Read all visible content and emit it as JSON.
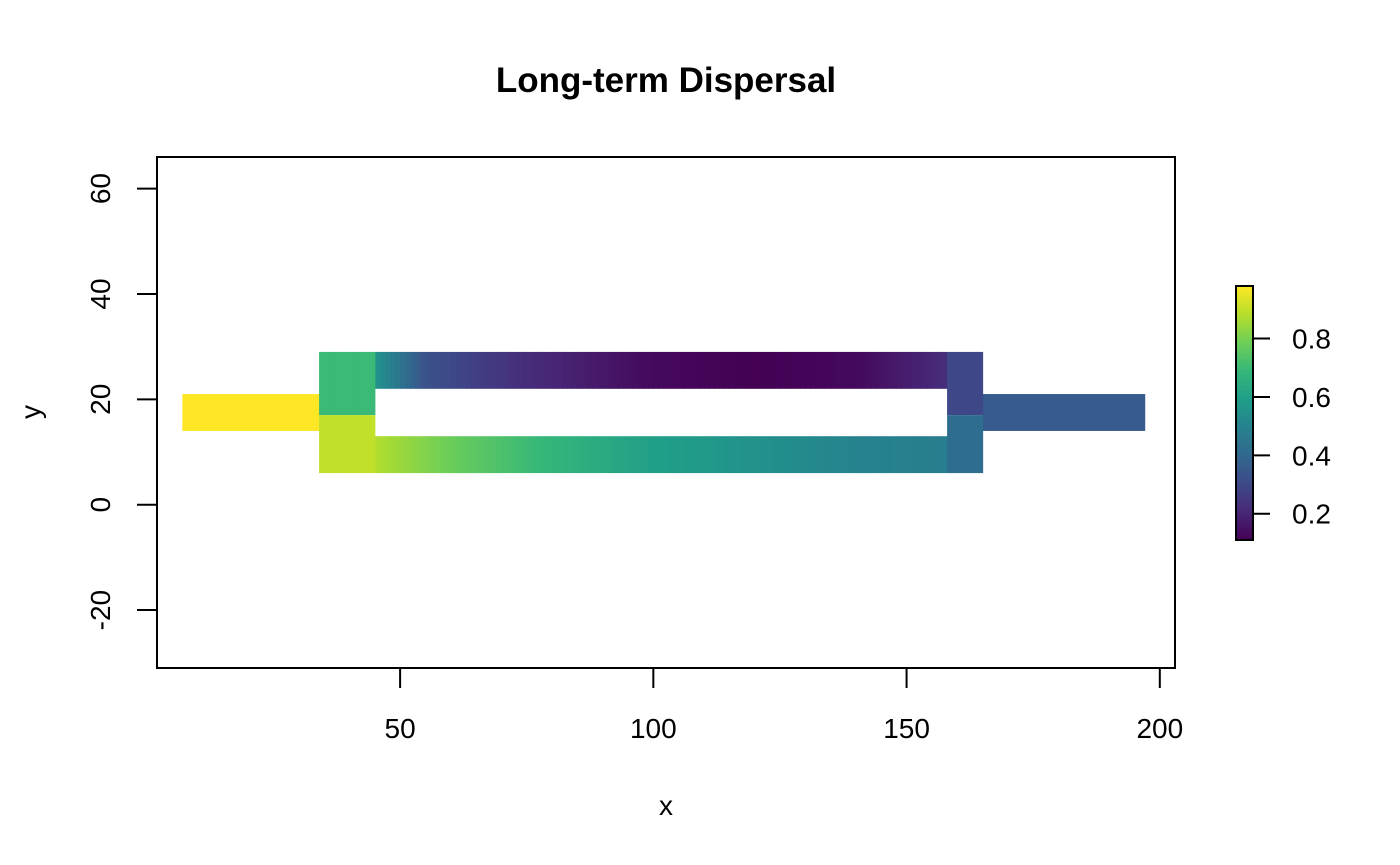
{
  "chart_data": {
    "type": "heatmap",
    "title": "Long-term Dispersal",
    "xlabel": "x",
    "ylabel": "y",
    "xlim": [
      2,
      203
    ],
    "ylim": [
      -31,
      66
    ],
    "x_ticks": [
      50,
      100,
      150,
      200
    ],
    "y_ticks": [
      -20,
      0,
      20,
      40,
      60
    ],
    "legend": {
      "position": "right",
      "range": [
        0.11,
        0.98
      ],
      "ticks": [
        0.2,
        0.4,
        0.6,
        0.8
      ],
      "tick_labels": [
        "0.2",
        "0.4",
        "0.6",
        "0.8"
      ],
      "colors": [
        "#440154",
        "#482878",
        "#3e4989",
        "#31688e",
        "#26828e",
        "#1f9e89",
        "#35b779",
        "#6ece58",
        "#b5de2b",
        "#fde725"
      ]
    },
    "regions": [
      {
        "name": "inlet channel",
        "x": [
          7,
          34
        ],
        "y": [
          14,
          21
        ],
        "value": 0.98
      },
      {
        "name": "outlet channel",
        "x": [
          165,
          197
        ],
        "y": [
          14,
          21
        ],
        "value": 0.36
      },
      {
        "name": "upper branch",
        "x": [
          45,
          158
        ],
        "y": [
          22,
          29
        ],
        "values_along_x": [
          [
            45,
            0.56
          ],
          [
            55,
            0.33
          ],
          [
            75,
            0.22
          ],
          [
            100,
            0.13
          ],
          [
            120,
            0.11
          ],
          [
            140,
            0.13
          ],
          [
            158,
            0.22
          ]
        ]
      },
      {
        "name": "lower branch",
        "x": [
          45,
          158
        ],
        "y": [
          6,
          13
        ],
        "values_along_x": [
          [
            45,
            0.88
          ],
          [
            60,
            0.78
          ],
          [
            80,
            0.68
          ],
          [
            100,
            0.6
          ],
          [
            120,
            0.55
          ],
          [
            140,
            0.5
          ],
          [
            158,
            0.48
          ]
        ]
      },
      {
        "name": "upper left junction",
        "x": [
          34,
          45
        ],
        "y": [
          17,
          29
        ],
        "value": 0.7
      },
      {
        "name": "lower left junction",
        "x": [
          34,
          45
        ],
        "y": [
          6,
          17
        ],
        "value": 0.9
      },
      {
        "name": "upper right junction",
        "x": [
          158,
          165
        ],
        "y": [
          17,
          29
        ],
        "value": 0.3
      },
      {
        "name": "lower right junction",
        "x": [
          158,
          165
        ],
        "y": [
          6,
          17
        ],
        "value": 0.42
      }
    ]
  }
}
